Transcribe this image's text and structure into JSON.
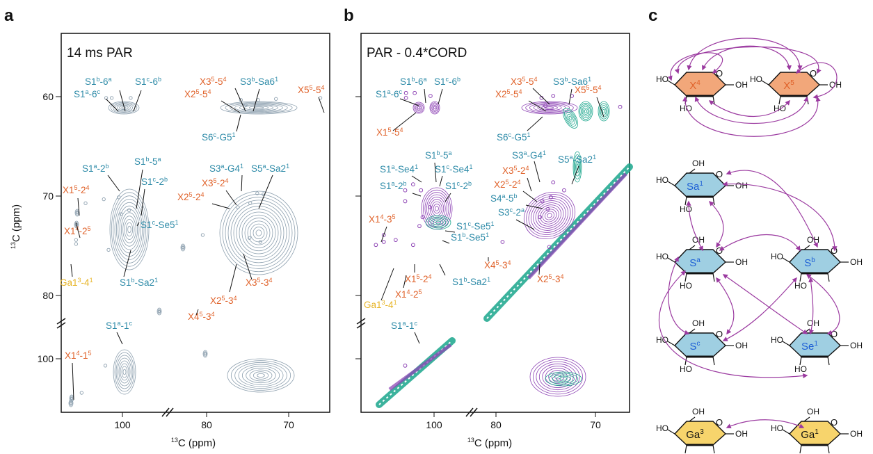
{
  "figure": {
    "panel_letters": [
      "a",
      "b",
      "c"
    ],
    "panel_a_title": "14 ms PAR",
    "panel_b_title": "PAR - 0.4*CORD",
    "y_axis_label": "13C (ppm)",
    "x_axis_label": "13C (ppm)"
  },
  "colors": {
    "blue_label": "#2e8ba8",
    "orange_label": "#e0622a",
    "yellow_label": "#e7b425",
    "grey_contour": "#8c9fae",
    "purple_contour": "#8e45b5",
    "teal_contour": "#1aa68c",
    "x_ring_fill": "#f2a77a",
    "s_ring_fill": "#9fcfe2",
    "ga_ring_fill": "#f7d46c",
    "arrow": "#9b3aa0"
  },
  "chart_data": [
    {
      "type": "heatmap",
      "panel": "a",
      "title": "14 ms PAR",
      "xlabel": "13C (ppm)",
      "ylabel": "13C (ppm)",
      "x_axis_broken": true,
      "y_axis_broken": true,
      "x_ticks": [
        "100",
        "80",
        "70"
      ],
      "y_ticks": [
        "60",
        "70",
        "80",
        "100"
      ],
      "xlim_left_segment": [
        107,
        94
      ],
      "xlim_right_segment": [
        85,
        65
      ],
      "ylim_top_segment": [
        55,
        83
      ],
      "ylim_bottom_segment": [
        94,
        105
      ],
      "peaks": [
        {
          "label": "S1a-6c",
          "group": "S",
          "x": 101.5,
          "y": 61.5
        },
        {
          "label": "S1b-6a",
          "group": "S",
          "x": 100.8,
          "y": 61.5
        },
        {
          "label": "S1c-6b",
          "group": "S",
          "x": 98.4,
          "y": 61.5
        },
        {
          "label": "X35-54",
          "group": "X",
          "x": 74.2,
          "y": 61.7
        },
        {
          "label": "X25-54",
          "group": "X",
          "x": 76.4,
          "y": 61.7
        },
        {
          "label": "S3b-Sa61",
          "group": "S",
          "x": 71.9,
          "y": 61.6
        },
        {
          "label": "X55-54",
          "group": "X",
          "x": 66.2,
          "y": 61.5
        },
        {
          "label": "S6c-G51",
          "group": "S",
          "x": 75.8,
          "y": 62.2
        },
        {
          "label": "S1a-2b",
          "group": "S",
          "x": 101.8,
          "y": 71.7
        },
        {
          "label": "S1b-5a",
          "group": "S",
          "x": 99.9,
          "y": 71.5
        },
        {
          "label": "S1c-2b",
          "group": "S",
          "x": 98.6,
          "y": 72.8
        },
        {
          "label": "S1c-Se51",
          "group": "S",
          "x": 99.6,
          "y": 73.2
        },
        {
          "label": "S1b-Sa21",
          "group": "S",
          "x": 101.2,
          "y": 76.8
        },
        {
          "label": "X15-24",
          "group": "X",
          "x": 104.1,
          "y": 72.1
        },
        {
          "label": "X14-25",
          "group": "X",
          "x": 105.3,
          "y": 75.8
        },
        {
          "label": "Ga13-41",
          "group": "Ga",
          "x": 105.3,
          "y": 76.2
        },
        {
          "label": "S3a-G41",
          "group": "S",
          "x": 74.3,
          "y": 71.1
        },
        {
          "label": "S5a-Sa21",
          "group": "S",
          "x": 73.5,
          "y": 71.2
        },
        {
          "label": "X35-24",
          "group": "X",
          "x": 75.2,
          "y": 72.1
        },
        {
          "label": "X25-24",
          "group": "X",
          "x": 76.8,
          "y": 72.5
        },
        {
          "label": "X45-34",
          "group": "X",
          "x": 81.3,
          "y": 75.3
        },
        {
          "label": "X25-34",
          "group": "X",
          "x": 75.3,
          "y": 75.6
        },
        {
          "label": "X35-34",
          "group": "X",
          "x": 73.9,
          "y": 76.0
        },
        {
          "label": "S1a-1c",
          "group": "S",
          "x": 101.6,
          "y": 99.0
        },
        {
          "label": "X14-15",
          "group": "X",
          "x": 104.6,
          "y": 102.5
        }
      ]
    },
    {
      "type": "heatmap",
      "panel": "b",
      "title": "PAR - 0.4*CORD",
      "xlabel": "13C (ppm)",
      "ylabel": "",
      "x_axis_broken": true,
      "y_axis_broken": true,
      "x_ticks": [
        "100",
        "80",
        "70"
      ],
      "xlim_left_segment": [
        107,
        94
      ],
      "xlim_right_segment": [
        85,
        65
      ],
      "ylim_top_segment": [
        55,
        83
      ],
      "ylim_bottom_segment": [
        94,
        105
      ],
      "series": [
        {
          "name": "",
          "color": "purple"
        },
        {
          "name": "",
          "color": "teal"
        }
      ],
      "peaks": [
        {
          "label": "S1a-6c",
          "group": "S",
          "x": 101.5,
          "y": 61.0
        },
        {
          "label": "S1b-6a",
          "group": "S",
          "x": 100.4,
          "y": 61.0
        },
        {
          "label": "S1c-6b",
          "group": "S",
          "x": 98.4,
          "y": 61.3
        },
        {
          "label": "X15-54",
          "group": "X",
          "x": 101.5,
          "y": 61.5
        },
        {
          "label": "X35-54",
          "group": "X",
          "x": 74.8,
          "y": 61.3
        },
        {
          "label": "X25-54",
          "group": "X",
          "x": 76.3,
          "y": 61.5
        },
        {
          "label": "S3b-Sa61",
          "group": "S",
          "x": 72.4,
          "y": 61.3
        },
        {
          "label": "X55-54",
          "group": "X",
          "x": 66.2,
          "y": 62.4
        },
        {
          "label": "S6c-G51",
          "group": "S",
          "x": 75.8,
          "y": 62.3
        },
        {
          "label": "S1b-5a",
          "group": "S",
          "x": 100.6,
          "y": 70.2
        },
        {
          "label": "S1a-Se41",
          "group": "S",
          "x": 101.6,
          "y": 70.8
        },
        {
          "label": "S1c-Se41",
          "group": "S",
          "x": 99.6,
          "y": 70.8
        },
        {
          "label": "S1a-2b",
          "group": "S",
          "x": 101.6,
          "y": 71.9
        },
        {
          "label": "S1c-2b",
          "group": "S",
          "x": 98.5,
          "y": 72.5
        },
        {
          "label": "S3a-G41",
          "group": "S",
          "x": 74.8,
          "y": 70.0
        },
        {
          "label": "S5a-Sa21",
          "group": "S",
          "x": 73.4,
          "y": 70.8
        },
        {
          "label": "X35-24",
          "group": "X",
          "x": 75.1,
          "y": 71.5
        },
        {
          "label": "X25-24",
          "group": "X",
          "x": 76.2,
          "y": 71.9
        },
        {
          "label": "S4a-5b",
          "group": "S",
          "x": 75.5,
          "y": 72.7
        },
        {
          "label": "S3c-2a",
          "group": "S",
          "x": 76.5,
          "y": 73.5
        },
        {
          "label": "S1c-Se51",
          "group": "S",
          "x": 99.4,
          "y": 73.5
        },
        {
          "label": "S1b-Se51",
          "group": "S",
          "x": 99.8,
          "y": 74.4
        },
        {
          "label": "X14-35",
          "group": "X",
          "x": 104.3,
          "y": 75.3
        },
        {
          "label": "X45-34",
          "group": "X",
          "x": 81.3,
          "y": 76.0
        },
        {
          "label": "X15-24",
          "group": "X",
          "x": 102.8,
          "y": 75.8
        },
        {
          "label": "X14-25",
          "group": "X",
          "x": 104.3,
          "y": 76.0
        },
        {
          "label": "S1b-Sa21",
          "group": "S",
          "x": 100.6,
          "y": 76.3
        },
        {
          "label": "Ga13-41",
          "group": "Ga",
          "x": 105.3,
          "y": 76.3
        },
        {
          "label": "X25-34",
          "group": "X",
          "x": 75.3,
          "y": 76.5
        },
        {
          "label": "S1a-1c",
          "group": "S",
          "x": 101.6,
          "y": 99.0
        }
      ]
    }
  ],
  "labels": {
    "a": [
      {
        "name": "S1a-6c",
        "base": "S1",
        "sup1": "a",
        "mid": "-6",
        "sup2": "c",
        "group": "S"
      },
      {
        "name": "S1b-6a",
        "base": "S1",
        "sup1": "b",
        "mid": "-6",
        "sup2": "a",
        "group": "S"
      },
      {
        "name": "S1c-6b",
        "base": "S1",
        "sup1": "c",
        "mid": "-6",
        "sup2": "b",
        "group": "S"
      },
      {
        "name": "X35-54",
        "base": "X3",
        "sup1": "5",
        "mid": "-5",
        "sup2": "4",
        "group": "X"
      },
      {
        "name": "X25-54",
        "base": "X2",
        "sup1": "5",
        "mid": "-5",
        "sup2": "4",
        "group": "X"
      },
      {
        "name": "S3b-Sa61",
        "base": "S3",
        "sup1": "b",
        "mid": "-Sa6",
        "sup2": "1",
        "group": "S"
      },
      {
        "name": "X55-54",
        "base": "X5",
        "sup1": "5",
        "mid": "-5",
        "sup2": "4",
        "group": "X"
      },
      {
        "name": "S6c-G51",
        "base": "S6",
        "sup1": "c",
        "mid": "-G5",
        "sup2": "1",
        "group": "S"
      },
      {
        "name": "S1a-2b",
        "base": "S1",
        "sup1": "a",
        "mid": "-2",
        "sup2": "b",
        "group": "S"
      },
      {
        "name": "S1b-5a",
        "base": "S1",
        "sup1": "b",
        "mid": "-5",
        "sup2": "a",
        "group": "S"
      },
      {
        "name": "S1c-2b",
        "base": "S1",
        "sup1": "c",
        "mid": "-2",
        "sup2": "b",
        "group": "S"
      },
      {
        "name": "S3a-G41",
        "base": "S3",
        "sup1": "a",
        "mid": "-G4",
        "sup2": "1",
        "group": "S"
      },
      {
        "name": "S5a-Sa21",
        "base": "S5",
        "sup1": "a",
        "mid": "-Sa2",
        "sup2": "1",
        "group": "S"
      },
      {
        "name": "X35-24",
        "base": "X3",
        "sup1": "5",
        "mid": "-2",
        "sup2": "4",
        "group": "X"
      },
      {
        "name": "X15-24",
        "base": "X1",
        "sup1": "5",
        "mid": "-2",
        "sup2": "4",
        "group": "X"
      },
      {
        "name": "X25-24",
        "base": "X2",
        "sup1": "5",
        "mid": "-2",
        "sup2": "4",
        "group": "X"
      },
      {
        "name": "X14-25",
        "base": "X1",
        "sup1": "4",
        "mid": "-2",
        "sup2": "5",
        "group": "X"
      },
      {
        "name": "S1c-Se51",
        "base": "S1",
        "sup1": "c",
        "mid": "-Se5",
        "sup2": "1",
        "group": "S"
      },
      {
        "name": "X45-34",
        "base": "X4",
        "sup1": "5",
        "mid": "-3",
        "sup2": "4",
        "group": "X"
      },
      {
        "name": "Ga13-41",
        "base": "Ga1",
        "sup1": "3",
        "mid": "-4",
        "sup2": "1",
        "group": "Ga"
      },
      {
        "name": "S1b-Sa21",
        "base": "S1",
        "sup1": "b",
        "mid": "-Sa2",
        "sup2": "1",
        "group": "S"
      },
      {
        "name": "X25-34",
        "base": "X2",
        "sup1": "5",
        "mid": "-3",
        "sup2": "4",
        "group": "X"
      },
      {
        "name": "X35-34",
        "base": "X3",
        "sup1": "5",
        "mid": "-3",
        "sup2": "4",
        "group": "X"
      },
      {
        "name": "S1a-1c",
        "base": "S1",
        "sup1": "a",
        "mid": "-1",
        "sup2": "c",
        "group": "S"
      },
      {
        "name": "X14-15",
        "base": "X1",
        "sup1": "4",
        "mid": "-1",
        "sup2": "5",
        "group": "X"
      }
    ],
    "b": [
      {
        "name": "S1b-6a",
        "base": "S1",
        "sup1": "b",
        "mid": "-6",
        "sup2": "a",
        "group": "S"
      },
      {
        "name": "S1c-6b",
        "base": "S1",
        "sup1": "c",
        "mid": "-6",
        "sup2": "b",
        "group": "S"
      },
      {
        "name": "S1a-6c",
        "base": "S1",
        "sup1": "a",
        "mid": "-6",
        "sup2": "c",
        "group": "S"
      },
      {
        "name": "X15-54",
        "base": "X1",
        "sup1": "5",
        "mid": "-5",
        "sup2": "4",
        "group": "X"
      },
      {
        "name": "X35-54",
        "base": "X3",
        "sup1": "5",
        "mid": "-5",
        "sup2": "4",
        "group": "X"
      },
      {
        "name": "S3b-Sa61",
        "base": "S3",
        "sup1": "b",
        "mid": "-Sa6",
        "sup2": "1",
        "group": "S"
      },
      {
        "name": "X25-54",
        "base": "X2",
        "sup1": "5",
        "mid": "-5",
        "sup2": "4",
        "group": "X"
      },
      {
        "name": "X55-54",
        "base": "X5",
        "sup1": "5",
        "mid": "-5",
        "sup2": "4",
        "group": "X"
      },
      {
        "name": "S6c-G51",
        "base": "S6",
        "sup1": "c",
        "mid": "-G5",
        "sup2": "1",
        "group": "S"
      },
      {
        "name": "S1b-5a",
        "base": "S1",
        "sup1": "b",
        "mid": "-5",
        "sup2": "a",
        "group": "S"
      },
      {
        "name": "S1a-Se41",
        "base": "S1",
        "sup1": "a",
        "mid": "-Se4",
        "sup2": "1",
        "group": "S"
      },
      {
        "name": "S1c-Se41",
        "base": "S1",
        "sup1": "c",
        "mid": "-Se4",
        "sup2": "1",
        "group": "S"
      },
      {
        "name": "S1a-2b",
        "base": "S1",
        "sup1": "a",
        "mid": "-2",
        "sup2": "b",
        "group": "S"
      },
      {
        "name": "S1c-2b",
        "base": "S1",
        "sup1": "c",
        "mid": "-2",
        "sup2": "b",
        "group": "S"
      },
      {
        "name": "S3a-G41",
        "base": "S3",
        "sup1": "a",
        "mid": "-G4",
        "sup2": "1",
        "group": "S"
      },
      {
        "name": "S5a-Sa21",
        "base": "S5",
        "sup1": "a",
        "mid": "-Sa2",
        "sup2": "1",
        "group": "S"
      },
      {
        "name": "X35-24",
        "base": "X3",
        "sup1": "5",
        "mid": "-2",
        "sup2": "4",
        "group": "X"
      },
      {
        "name": "X25-24",
        "base": "X2",
        "sup1": "5",
        "mid": "-2",
        "sup2": "4",
        "group": "X"
      },
      {
        "name": "S4a-5b",
        "base": "S4",
        "sup1": "a",
        "mid": "-5",
        "sup2": "b",
        "group": "S"
      },
      {
        "name": "S3c-2a",
        "base": "S3",
        "sup1": "c",
        "mid": "-2",
        "sup2": "a",
        "group": "S"
      },
      {
        "name": "X14-35",
        "base": "X1",
        "sup1": "4",
        "mid": "-3",
        "sup2": "5",
        "group": "X"
      },
      {
        "name": "S1c-Se51",
        "base": "S1",
        "sup1": "c",
        "mid": "-Se5",
        "sup2": "1",
        "group": "S"
      },
      {
        "name": "S1b-Se51",
        "base": "S1",
        "sup1": "b",
        "mid": "-Se5",
        "sup2": "1",
        "group": "S"
      },
      {
        "name": "X45-34",
        "base": "X4",
        "sup1": "5",
        "mid": "-3",
        "sup2": "4",
        "group": "X"
      },
      {
        "name": "X15-24",
        "base": "X1",
        "sup1": "5",
        "mid": "-2",
        "sup2": "4",
        "group": "X"
      },
      {
        "name": "S1b-Sa21",
        "base": "S1",
        "sup1": "b",
        "mid": "-Sa2",
        "sup2": "1",
        "group": "S"
      },
      {
        "name": "X14-25",
        "base": "X1",
        "sup1": "4",
        "mid": "-2",
        "sup2": "5",
        "group": "X"
      },
      {
        "name": "X25-34",
        "base": "X2",
        "sup1": "5",
        "mid": "-3",
        "sup2": "4",
        "group": "X"
      },
      {
        "name": "Ga13-41",
        "base": "Ga1",
        "sup1": "3",
        "mid": "-4",
        "sup2": "1",
        "group": "Ga"
      },
      {
        "name": "S1a-1c",
        "base": "S1",
        "sup1": "a",
        "mid": "-1",
        "sup2": "c",
        "group": "S"
      }
    ]
  },
  "structures": {
    "rings": [
      {
        "name": "X4",
        "base": "X",
        "sup": "4",
        "color": "x"
      },
      {
        "name": "X5",
        "base": "X",
        "sup": "5",
        "color": "x"
      },
      {
        "name": "Sa1",
        "base": "Sa",
        "sup": "1",
        "color": "s"
      },
      {
        "name": "Sa",
        "base": "S",
        "sup": "a",
        "color": "s"
      },
      {
        "name": "Sb",
        "base": "S",
        "sup": "b",
        "color": "s"
      },
      {
        "name": "Sc",
        "base": "S",
        "sup": "c",
        "color": "s"
      },
      {
        "name": "Se1",
        "base": "Se",
        "sup": "1",
        "color": "s"
      },
      {
        "name": "Ga3",
        "base": "Ga",
        "sup": "3",
        "color": "ga"
      },
      {
        "name": "Ga1",
        "base": "Ga",
        "sup": "1",
        "color": "ga"
      }
    ],
    "atom_labels": {
      "ho": "HO",
      "oh": "OH",
      "o": "O"
    }
  }
}
